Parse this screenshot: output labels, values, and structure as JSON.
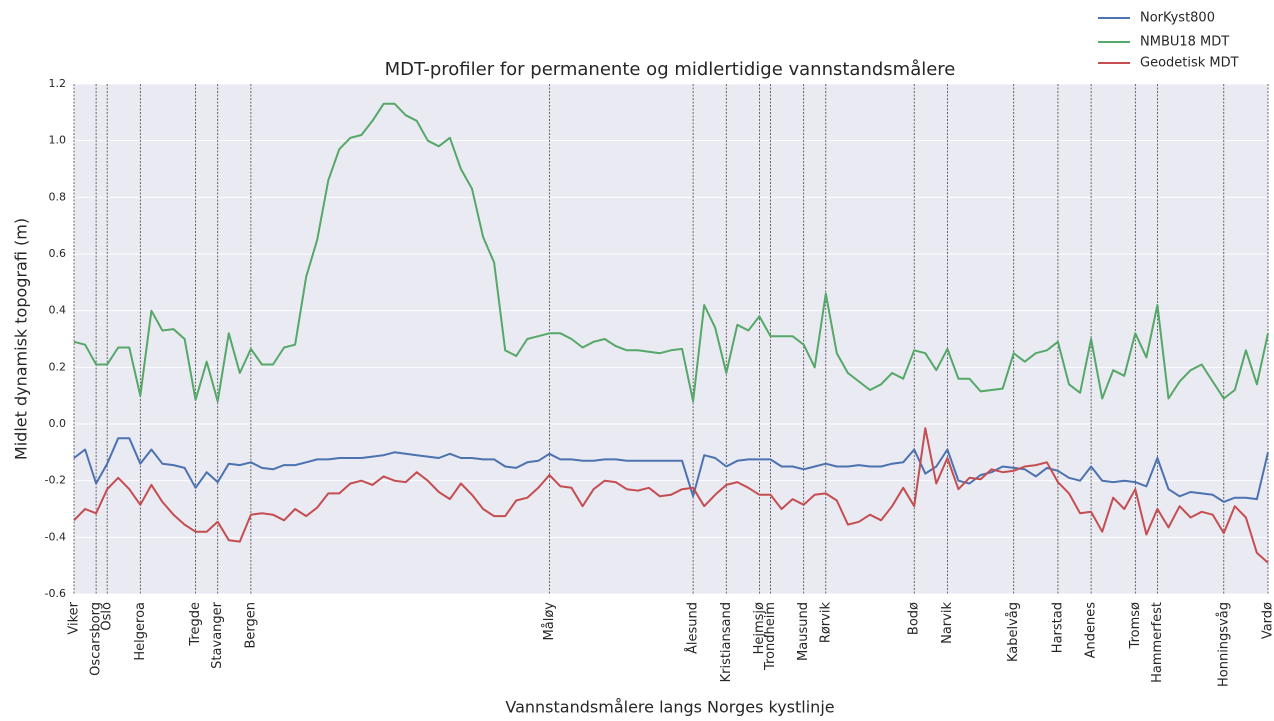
{
  "chart_data": {
    "type": "line",
    "title": "MDT-profiler for permanente og midlertidige vannstandsmålere",
    "xlabel": "Vannstandsmålere langs Norges kystlinje",
    "ylabel": "Midlet dynamisk topografi (m)",
    "categories": [
      "Viker",
      null,
      "Oscarsborg",
      "Oslo",
      null,
      null,
      "Helgeroa",
      null,
      null,
      null,
      null,
      "Tregde",
      null,
      "Stavanger",
      null,
      null,
      "Bergen",
      null,
      null,
      null,
      null,
      null,
      null,
      null,
      null,
      null,
      null,
      null,
      null,
      null,
      null,
      null,
      null,
      null,
      null,
      null,
      null,
      null,
      null,
      null,
      null,
      null,
      null,
      "Måløy",
      null,
      null,
      null,
      null,
      null,
      null,
      null,
      null,
      null,
      null,
      null,
      null,
      "Ålesund",
      null,
      null,
      "Kristiansand",
      null,
      null,
      "Hejmsjø",
      "Trondheim",
      null,
      null,
      "Mausund",
      null,
      "Rørvik",
      null,
      null,
      null,
      null,
      null,
      null,
      null,
      "Bodø",
      null,
      null,
      "Narvik",
      null,
      null,
      null,
      null,
      null,
      "Kabelvåg",
      null,
      null,
      null,
      "Harstad",
      null,
      null,
      "Andenes",
      null,
      null,
      null,
      "Tromsø",
      null,
      "Hammerfest",
      null,
      null,
      null,
      null,
      null,
      "Honningsvåg",
      null,
      null,
      null,
      "Vardø"
    ],
    "series": [
      {
        "name": "NorKyst800",
        "color": "#4c72b0",
        "values": [
          -0.12,
          -0.09,
          -0.21,
          -0.14,
          -0.05,
          -0.05,
          -0.14,
          -0.09,
          -0.14,
          -0.145,
          -0.155,
          -0.225,
          -0.17,
          -0.205,
          -0.14,
          -0.145,
          -0.135,
          -0.155,
          -0.16,
          -0.145,
          -0.145,
          -0.135,
          -0.125,
          -0.125,
          -0.12,
          -0.12,
          -0.12,
          -0.115,
          -0.11,
          -0.1,
          -0.105,
          -0.11,
          -0.115,
          -0.12,
          -0.105,
          -0.12,
          -0.12,
          -0.125,
          -0.125,
          -0.15,
          -0.155,
          -0.135,
          -0.13,
          -0.105,
          -0.125,
          -0.125,
          -0.13,
          -0.13,
          -0.125,
          -0.125,
          -0.13,
          -0.13,
          -0.13,
          -0.13,
          -0.13,
          -0.13,
          -0.255,
          -0.11,
          -0.12,
          -0.15,
          -0.13,
          -0.125,
          -0.125,
          -0.125,
          -0.15,
          -0.15,
          -0.16,
          -0.15,
          -0.14,
          -0.15,
          -0.15,
          -0.145,
          -0.15,
          -0.15,
          -0.14,
          -0.135,
          -0.09,
          -0.175,
          -0.15,
          -0.09,
          -0.2,
          -0.21,
          -0.18,
          -0.17,
          -0.15,
          -0.155,
          -0.16,
          -0.185,
          -0.155,
          -0.165,
          -0.19,
          -0.2,
          -0.15,
          -0.2,
          -0.205,
          -0.2,
          -0.205,
          -0.22,
          -0.12,
          -0.23,
          -0.255,
          -0.24,
          -0.245,
          -0.25,
          -0.275,
          -0.26,
          -0.26,
          -0.265,
          -0.1
        ]
      },
      {
        "name": "NMBU18 MDT",
        "color": "#55a868",
        "values": [
          0.29,
          0.28,
          0.21,
          0.21,
          0.27,
          0.27,
          0.1,
          0.4,
          0.33,
          0.335,
          0.3,
          0.085,
          0.22,
          0.08,
          0.32,
          0.18,
          0.265,
          0.21,
          0.21,
          0.27,
          0.28,
          0.52,
          0.65,
          0.86,
          0.97,
          1.01,
          1.02,
          1.07,
          1.13,
          1.13,
          1.09,
          1.07,
          1.0,
          0.98,
          1.01,
          0.9,
          0.83,
          0.66,
          0.57,
          0.26,
          0.24,
          0.3,
          0.31,
          0.32,
          0.32,
          0.3,
          0.27,
          0.29,
          0.3,
          0.275,
          0.26,
          0.26,
          0.255,
          0.25,
          0.26,
          0.265,
          0.08,
          0.42,
          0.34,
          0.18,
          0.35,
          0.33,
          0.38,
          0.31,
          0.31,
          0.31,
          0.28,
          0.2,
          0.46,
          0.25,
          0.18,
          0.15,
          0.12,
          0.14,
          0.18,
          0.16,
          0.26,
          0.25,
          0.19,
          0.265,
          0.16,
          0.16,
          0.115,
          0.12,
          0.125,
          0.25,
          0.22,
          0.25,
          0.26,
          0.29,
          0.14,
          0.11,
          0.3,
          0.09,
          0.19,
          0.17,
          0.32,
          0.235,
          0.42,
          0.09,
          0.15,
          0.19,
          0.21,
          0.15,
          0.09,
          0.12,
          0.26,
          0.14,
          0.32
        ]
      },
      {
        "name": "Geodetisk MDT",
        "color": "#c44e52",
        "values": [
          -0.34,
          -0.3,
          -0.315,
          -0.23,
          -0.19,
          -0.23,
          -0.285,
          -0.215,
          -0.275,
          -0.32,
          -0.355,
          -0.38,
          -0.38,
          -0.345,
          -0.41,
          -0.415,
          -0.32,
          -0.315,
          -0.32,
          -0.34,
          -0.3,
          -0.325,
          -0.295,
          -0.245,
          -0.245,
          -0.21,
          -0.2,
          -0.215,
          -0.185,
          -0.2,
          -0.205,
          -0.17,
          -0.2,
          -0.24,
          -0.265,
          -0.21,
          -0.25,
          -0.3,
          -0.325,
          -0.325,
          -0.27,
          -0.26,
          -0.225,
          -0.18,
          -0.22,
          -0.225,
          -0.29,
          -0.23,
          -0.2,
          -0.205,
          -0.23,
          -0.235,
          -0.225,
          -0.255,
          -0.25,
          -0.23,
          -0.225,
          -0.29,
          -0.25,
          -0.215,
          -0.205,
          -0.225,
          -0.25,
          -0.25,
          -0.3,
          -0.265,
          -0.285,
          -0.25,
          -0.245,
          -0.27,
          -0.355,
          -0.345,
          -0.32,
          -0.34,
          -0.29,
          -0.225,
          -0.29,
          -0.015,
          -0.21,
          -0.12,
          -0.23,
          -0.19,
          -0.195,
          -0.16,
          -0.17,
          -0.165,
          -0.15,
          -0.145,
          -0.135,
          -0.205,
          -0.245,
          -0.315,
          -0.31,
          -0.38,
          -0.26,
          -0.3,
          -0.23,
          -0.39,
          -0.3,
          -0.365,
          -0.29,
          -0.33,
          -0.31,
          -0.32,
          -0.385,
          -0.29,
          -0.33,
          -0.455,
          -0.49
        ]
      }
    ],
    "ylim": [
      -0.6,
      1.2
    ],
    "yticks": [
      -0.6,
      -0.4,
      -0.2,
      {
        "value": 0,
        "label": "0.0"
      },
      0.2,
      0.4,
      0.6,
      0.8,
      {
        "value": 1,
        "label": "1.0"
      },
      1.2
    ],
    "grid": true,
    "legend": "upper right"
  }
}
